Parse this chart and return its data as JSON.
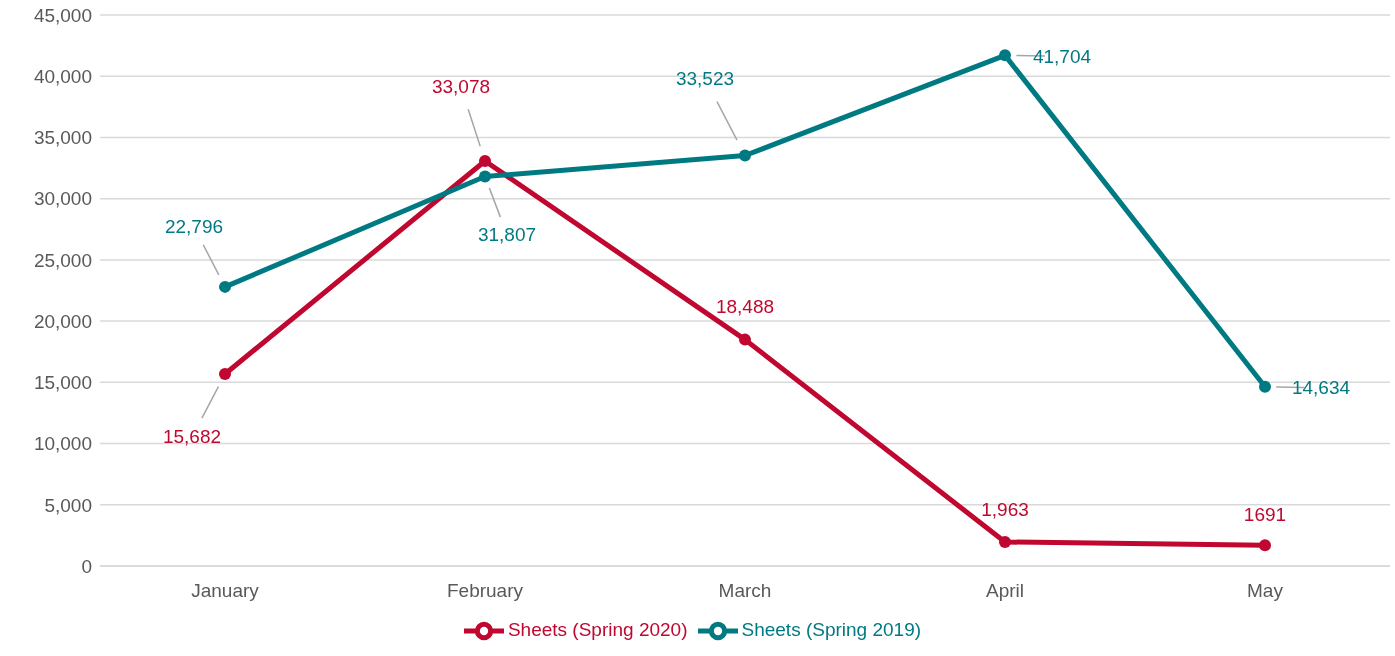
{
  "chart_data": {
    "type": "line",
    "categories": [
      "January",
      "February",
      "March",
      "April",
      "May"
    ],
    "series": [
      {
        "name": "Sheets (Spring 2020)",
        "color": "#c0072f",
        "values": [
          15682,
          33078,
          18488,
          1963,
          1691
        ],
        "value_labels": [
          "15,682",
          "33,078",
          "18,488",
          "1,963",
          "1691"
        ]
      },
      {
        "name": "Sheets (Spring 2019)",
        "color": "#007a82",
        "values": [
          22796,
          31807,
          33523,
          41704,
          14634
        ],
        "value_labels": [
          "22,796",
          "31,807",
          "33,523",
          "41,704",
          "14,634"
        ]
      }
    ],
    "ylim": [
      0,
      45000
    ],
    "yticks": [
      0,
      {
        "value": 5000,
        "label": "5,000"
      },
      {
        "value": 10000,
        "label": "10,000"
      },
      {
        "value": 15000,
        "label": "15,000"
      },
      {
        "value": 20000,
        "label": "20,000"
      },
      {
        "value": 25000,
        "label": "25,000"
      },
      {
        "value": 30000,
        "label": "30,000"
      },
      {
        "value": 35000,
        "label": "35,000"
      },
      {
        "value": 40000,
        "label": "40,000"
      },
      {
        "value": 45000,
        "label": "45,000"
      }
    ],
    "grid": "y",
    "legend": "bottom",
    "marker": "circle",
    "line_style": "solid"
  }
}
